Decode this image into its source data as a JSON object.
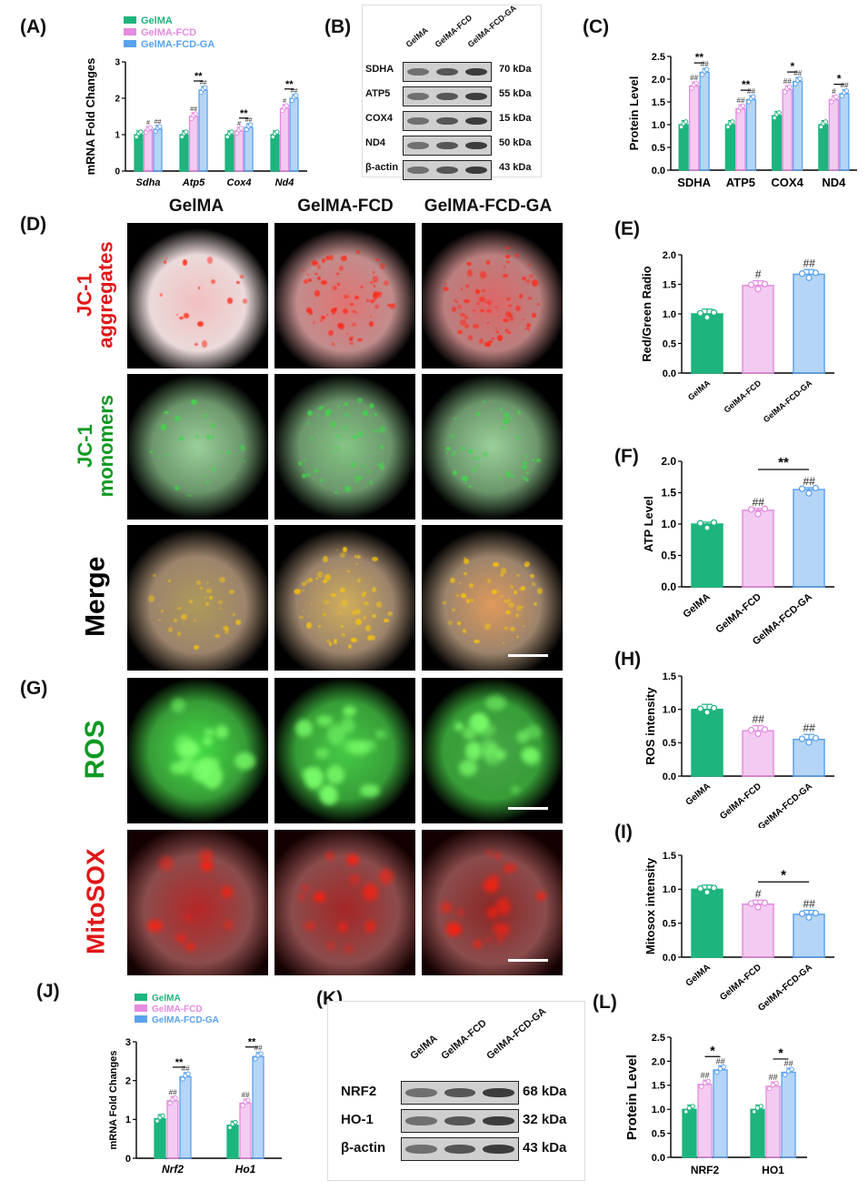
{
  "panels": {
    "A": {
      "label": "(A)"
    },
    "B": {
      "label": "(B)"
    },
    "C": {
      "label": "(C)"
    },
    "D": {
      "label": "(D)"
    },
    "E": {
      "label": "(E)"
    },
    "F": {
      "label": "(F)"
    },
    "G": {
      "label": "(G)"
    },
    "H": {
      "label": "(H)"
    },
    "I": {
      "label": "(I)"
    },
    "J": {
      "label": "(J)"
    },
    "K": {
      "label": "(K)"
    },
    "L": {
      "label": "(L)"
    }
  },
  "colors": {
    "gelma": "#1db57d",
    "fcd": "#e58be0",
    "fcdga": "#5aa2ee"
  },
  "groups": [
    "GelMA",
    "GelMA-FCD",
    "GelMA-FCD-GA"
  ],
  "image_grid": {
    "col_titles": [
      "GelMA",
      "GelMA-FCD",
      "GelMA-FCD-GA"
    ],
    "rows": [
      {
        "label_lines": [
          "JC-1",
          "aggregates"
        ],
        "color": "#e01818"
      },
      {
        "label_lines": [
          "JC-1",
          "monomers"
        ],
        "color": "#0e9a22"
      },
      {
        "label_lines": [
          "Merge"
        ],
        "color": "#000000"
      },
      {
        "label_lines": [
          "ROS"
        ],
        "color": "#0e9a22"
      },
      {
        "label_lines": [
          "MitoSOX"
        ],
        "color": "#e01818"
      }
    ]
  },
  "blot_B": {
    "lanes": [
      "GelMA",
      "GelMA-FCD",
      "GelMA-FCD-GA"
    ],
    "rows": [
      {
        "protein": "SDHA",
        "kda": "70 kDa"
      },
      {
        "protein": "ATP5",
        "kda": "55 kDa"
      },
      {
        "protein": "COX4",
        "kda": "15 kDa"
      },
      {
        "protein": "ND4",
        "kda": "50 kDa"
      },
      {
        "protein": "β-actin",
        "kda": "43 kDa"
      }
    ]
  },
  "blot_K": {
    "lanes": [
      "GelMA",
      "GelMA-FCD",
      "GelMA-FCD-GA"
    ],
    "rows": [
      {
        "protein": "NRF2",
        "kda": "68 kDa"
      },
      {
        "protein": "HO-1",
        "kda": "32 kDa"
      },
      {
        "protein": "β-actin",
        "kda": "43 kDa"
      }
    ]
  },
  "chart_data": [
    {
      "id": "A",
      "type": "bar",
      "ylabel": "mRNA Fold Changes",
      "ylim": [
        0,
        3
      ],
      "yticks": [
        0,
        1,
        2,
        3
      ],
      "categories": [
        "Sdha",
        "Atp5",
        "Cox4",
        "Nd4"
      ],
      "legend": [
        "GelMA",
        "GelMA-FCD",
        "GelMA-FCD-GA"
      ],
      "series": [
        {
          "name": "GelMA",
          "values": [
            1.0,
            1.0,
            1.0,
            1.0
          ]
        },
        {
          "name": "GelMA-FCD",
          "values": [
            1.12,
            1.5,
            1.1,
            1.72
          ]
        },
        {
          "name": "GelMA-FCD-GA",
          "values": [
            1.15,
            2.22,
            1.2,
            2.0
          ]
        }
      ],
      "marks": {
        "FCD": [
          "#",
          "##",
          "#",
          "#"
        ],
        "FCDGA": [
          "##",
          "##",
          "##",
          "##"
        ]
      },
      "brackets": [
        "",
        "**",
        "**",
        "**"
      ]
    },
    {
      "id": "C",
      "type": "bar",
      "ylabel": "Protein Level",
      "ylim": [
        0,
        2.5
      ],
      "yticks": [
        0.0,
        0.5,
        1.0,
        1.5,
        2.0,
        2.5
      ],
      "categories": [
        "SDHA",
        "ATP5",
        "COX4",
        "ND4"
      ],
      "series": [
        {
          "name": "GelMA",
          "values": [
            1.0,
            1.0,
            1.2,
            1.0
          ]
        },
        {
          "name": "GelMA-FCD",
          "values": [
            1.85,
            1.35,
            1.77,
            1.55
          ]
        },
        {
          "name": "GelMA-FCD-GA",
          "values": [
            2.15,
            1.55,
            1.95,
            1.68
          ]
        }
      ],
      "marks": {
        "FCD": [
          "##",
          "##",
          "##",
          "#"
        ],
        "FCDGA": [
          "##",
          "##",
          "##",
          "##"
        ]
      },
      "brackets": [
        "**",
        "**",
        "*",
        "*"
      ]
    },
    {
      "id": "E",
      "type": "bar",
      "ylabel": "Red/Green Radio",
      "ylim": [
        0,
        2
      ],
      "yticks": [
        0.0,
        0.5,
        1.0,
        1.5,
        2.0
      ],
      "categories": [
        "GelMA",
        "GelMA-FCD",
        "GelMA-FCD-GA"
      ],
      "values": [
        1.0,
        1.48,
        1.67
      ],
      "marks": [
        "",
        "#",
        "##"
      ],
      "bracket": ""
    },
    {
      "id": "F",
      "type": "bar",
      "ylabel": "ATP Level",
      "ylim": [
        0,
        2
      ],
      "yticks": [
        0.0,
        0.5,
        1.0,
        1.5,
        2.0
      ],
      "categories": [
        "GelMA",
        "GelMA-FCD",
        "GelMA-FCD-GA"
      ],
      "values": [
        1.0,
        1.22,
        1.55
      ],
      "marks": [
        "",
        "##",
        "##"
      ],
      "bracket": "**"
    },
    {
      "id": "H",
      "type": "bar",
      "ylabel": "ROS intensity",
      "ylim": [
        0,
        1.5
      ],
      "yticks": [
        0.0,
        0.5,
        1.0,
        1.5
      ],
      "categories": [
        "GelMA",
        "GelMA-FCD",
        "GelMA-FCD-GA"
      ],
      "values": [
        1.0,
        0.68,
        0.55
      ],
      "marks": [
        "",
        "##",
        "##"
      ],
      "bracket": ""
    },
    {
      "id": "I",
      "type": "bar",
      "ylabel": "Mitosox intensity",
      "ylim": [
        0,
        1.5
      ],
      "yticks": [
        0.0,
        0.5,
        1.0,
        1.5
      ],
      "categories": [
        "GelMA",
        "GelMA-FCD",
        "GelMA-FCD-GA"
      ],
      "values": [
        1.0,
        0.78,
        0.63
      ],
      "marks": [
        "",
        "#",
        "##"
      ],
      "bracket": "*"
    },
    {
      "id": "J",
      "type": "bar",
      "ylabel": "mRNA Fold Changes",
      "ylim": [
        0,
        3
      ],
      "yticks": [
        0,
        1,
        2,
        3
      ],
      "categories": [
        "Nrf2",
        "Ho1"
      ],
      "legend": [
        "GelMA",
        "GelMA-FCD",
        "GelMA-FCD-GA"
      ],
      "series": [
        {
          "name": "GelMA",
          "values": [
            1.02,
            0.85
          ]
        },
        {
          "name": "GelMA-FCD",
          "values": [
            1.48,
            1.42
          ]
        },
        {
          "name": "GelMA-FCD-GA",
          "values": [
            2.1,
            2.62
          ]
        }
      ],
      "marks": {
        "FCD": [
          "##",
          "##"
        ],
        "FCDGA": [
          "##",
          "##"
        ]
      },
      "brackets": [
        "**",
        "**"
      ]
    },
    {
      "id": "L",
      "type": "bar",
      "ylabel": "Protein Level",
      "ylim": [
        0,
        2.5
      ],
      "yticks": [
        0.0,
        0.5,
        1.0,
        1.5,
        2.0,
        2.5
      ],
      "categories": [
        "NRF2",
        "HO1"
      ],
      "series": [
        {
          "name": "GelMA",
          "values": [
            1.0,
            1.0
          ]
        },
        {
          "name": "GelMA-FCD",
          "values": [
            1.52,
            1.48
          ]
        },
        {
          "name": "GelMA-FCD-GA",
          "values": [
            1.82,
            1.77
          ]
        }
      ],
      "marks": {
        "FCD": [
          "##",
          "##"
        ],
        "FCDGA": [
          "##",
          "##"
        ]
      },
      "brackets": [
        "*",
        "*"
      ]
    }
  ]
}
